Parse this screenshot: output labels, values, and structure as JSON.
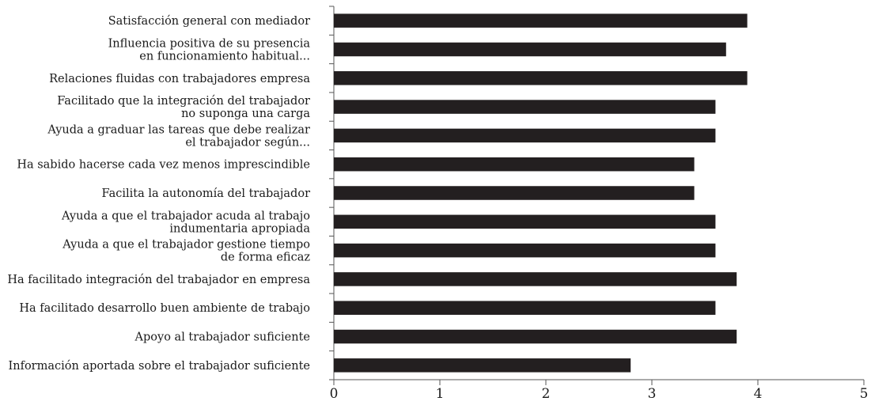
{
  "chart_data": {
    "type": "bar",
    "orientation": "horizontal",
    "title": "",
    "xlabel": "",
    "ylabel": "",
    "xlim": [
      0,
      5
    ],
    "x_ticks": [
      "0",
      "1",
      "2",
      "3",
      "4",
      "5"
    ],
    "grid": false,
    "bar_color": "#231f20",
    "categories": [
      [
        "Satisfacción general con mediador"
      ],
      [
        "Influencia positiva de su presencia",
        "en funcionamiento habitual..."
      ],
      [
        "Relaciones fluidas con trabajadores empresa"
      ],
      [
        "Facilitado que la integración del trabajador",
        "no suponga una carga"
      ],
      [
        "Ayuda a graduar las tareas que debe realizar",
        "el trabajador según..."
      ],
      [
        "Ha sabido hacerse cada vez menos imprescindible"
      ],
      [
        "Facilita la autonomía del trabajador"
      ],
      [
        "Ayuda a que el trabajador acuda al trabajo",
        "indumentaria apropiada"
      ],
      [
        "Ayuda a que el trabajador gestione tiempo",
        "de forma eficaz"
      ],
      [
        "Ha facilitado integración del trabajador en empresa"
      ],
      [
        "Ha facilitado desarrollo buen ambiente de trabajo"
      ],
      [
        "Apoyo al trabajador suficiente"
      ],
      [
        "Información aportada sobre el trabajador suficiente"
      ]
    ],
    "values": [
      3.9,
      3.7,
      3.9,
      3.6,
      3.6,
      3.4,
      3.4,
      3.6,
      3.6,
      3.8,
      3.6,
      3.8,
      2.8
    ]
  }
}
